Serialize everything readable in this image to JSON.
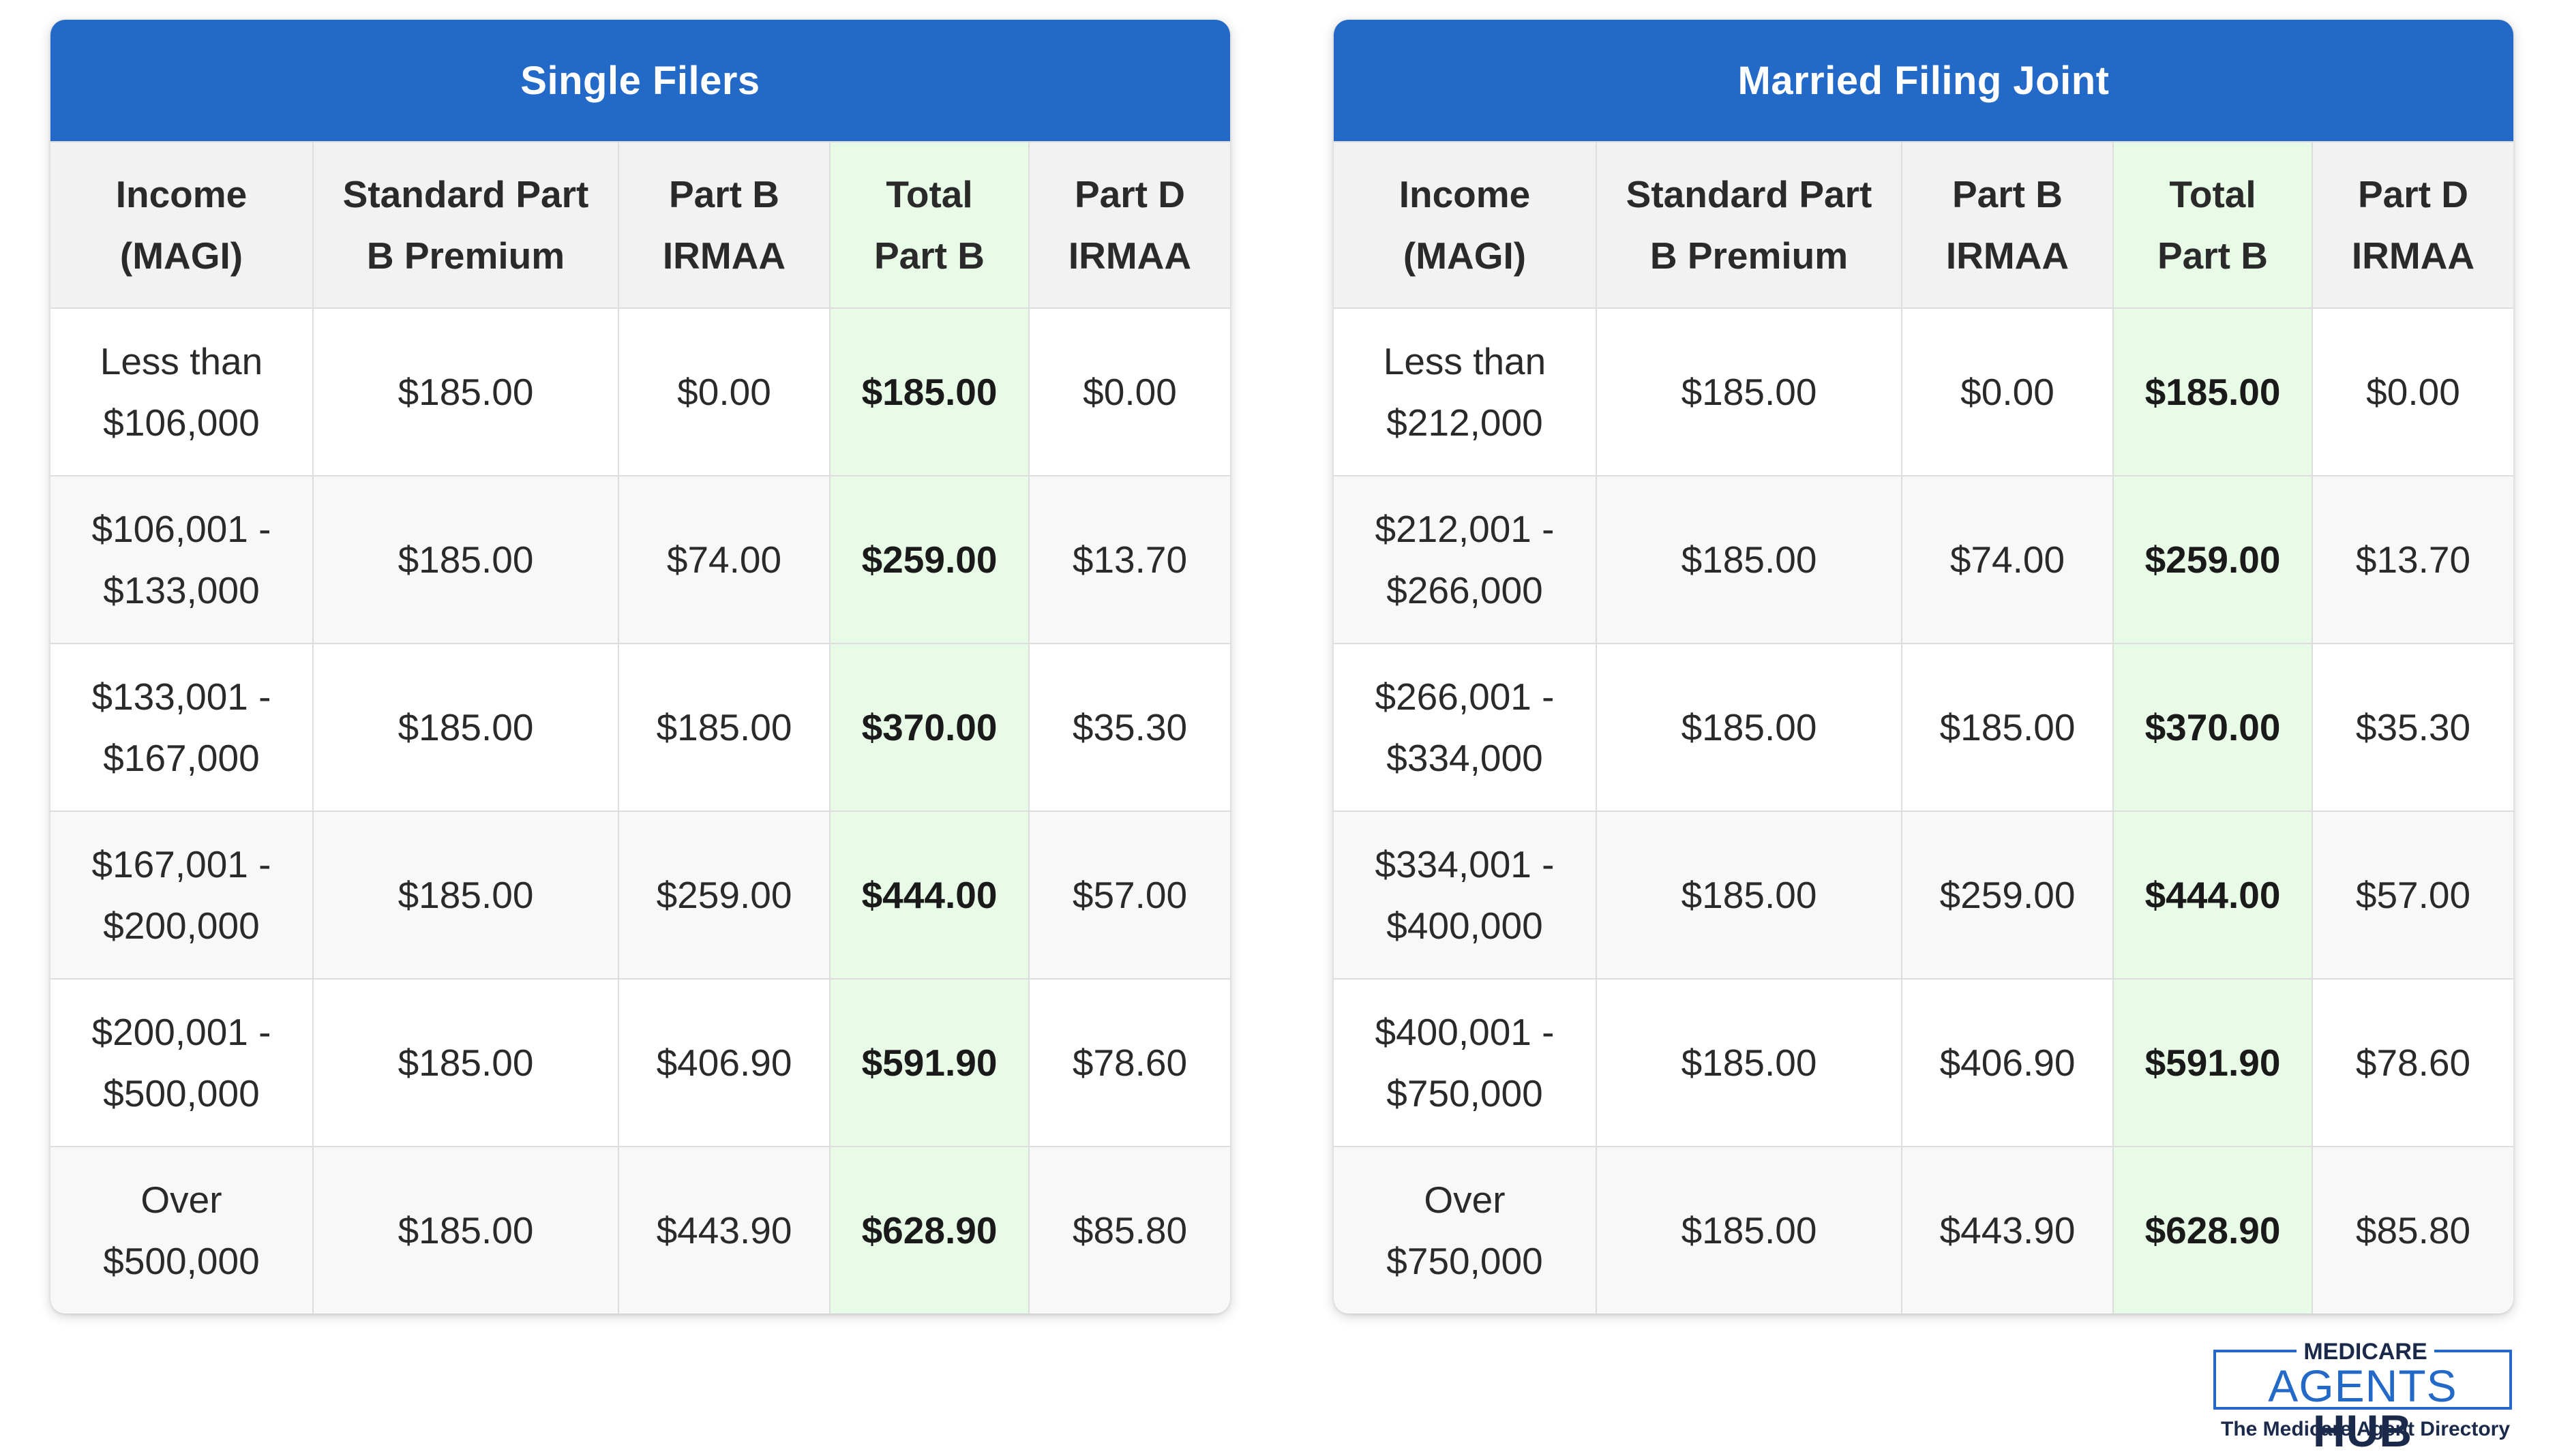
{
  "tables": [
    {
      "title": "Single Filers",
      "headers": {
        "income": [
          "Income",
          "(MAGI)"
        ],
        "standard": [
          "Standard Part",
          "B Premium"
        ],
        "partb": [
          "Part B",
          "IRMAA"
        ],
        "total": [
          "Total",
          "Part B"
        ],
        "partd": [
          "Part D",
          "IRMAA"
        ]
      },
      "rows": [
        {
          "income": [
            "Less than",
            "$106,000"
          ],
          "standard": "$185.00",
          "partb": "$0.00",
          "total": "$185.00",
          "partd": "$0.00"
        },
        {
          "income": [
            "$106,001 -",
            "$133,000"
          ],
          "standard": "$185.00",
          "partb": "$74.00",
          "total": "$259.00",
          "partd": "$13.70"
        },
        {
          "income": [
            "$133,001 -",
            "$167,000"
          ],
          "standard": "$185.00",
          "partb": "$185.00",
          "total": "$370.00",
          "partd": "$35.30"
        },
        {
          "income": [
            "$167,001 -",
            "$200,000"
          ],
          "standard": "$185.00",
          "partb": "$259.00",
          "total": "$444.00",
          "partd": "$57.00"
        },
        {
          "income": [
            "$200,001 -",
            "$500,000"
          ],
          "standard": "$185.00",
          "partb": "$406.90",
          "total": "$591.90",
          "partd": "$78.60"
        },
        {
          "income": [
            "Over",
            "$500,000"
          ],
          "standard": "$185.00",
          "partb": "$443.90",
          "total": "$628.90",
          "partd": "$85.80"
        }
      ]
    },
    {
      "title": "Married Filing Joint",
      "headers": {
        "income": [
          "Income",
          "(MAGI)"
        ],
        "standard": [
          "Standard Part",
          "B Premium"
        ],
        "partb": [
          "Part B",
          "IRMAA"
        ],
        "total": [
          "Total",
          "Part B"
        ],
        "partd": [
          "Part D",
          "IRMAA"
        ]
      },
      "rows": [
        {
          "income": [
            "Less than",
            "$212,000"
          ],
          "standard": "$185.00",
          "partb": "$0.00",
          "total": "$185.00",
          "partd": "$0.00"
        },
        {
          "income": [
            "$212,001 -",
            "$266,000"
          ],
          "standard": "$185.00",
          "partb": "$74.00",
          "total": "$259.00",
          "partd": "$13.70"
        },
        {
          "income": [
            "$266,001 -",
            "$334,000"
          ],
          "standard": "$185.00",
          "partb": "$185.00",
          "total": "$370.00",
          "partd": "$35.30"
        },
        {
          "income": [
            "$334,001 -",
            "$400,000"
          ],
          "standard": "$185.00",
          "partb": "$259.00",
          "total": "$444.00",
          "partd": "$57.00"
        },
        {
          "income": [
            "$400,001 -",
            "$750,000"
          ],
          "standard": "$185.00",
          "partb": "$406.90",
          "total": "$591.90",
          "partd": "$78.60"
        },
        {
          "income": [
            "Over",
            "$750,000"
          ],
          "standard": "$185.00",
          "partb": "$443.90",
          "total": "$628.90",
          "partd": "$85.80"
        }
      ]
    }
  ],
  "logo": {
    "top": "MEDICARE",
    "agents": "AGENTS",
    "hub": "HUB",
    "tagline": "The Medicare Agent Directory"
  },
  "colors": {
    "header_blue": "#2369c7",
    "total_column_green": "#e8fbe6",
    "header_row_gray": "#f2f2f2"
  }
}
